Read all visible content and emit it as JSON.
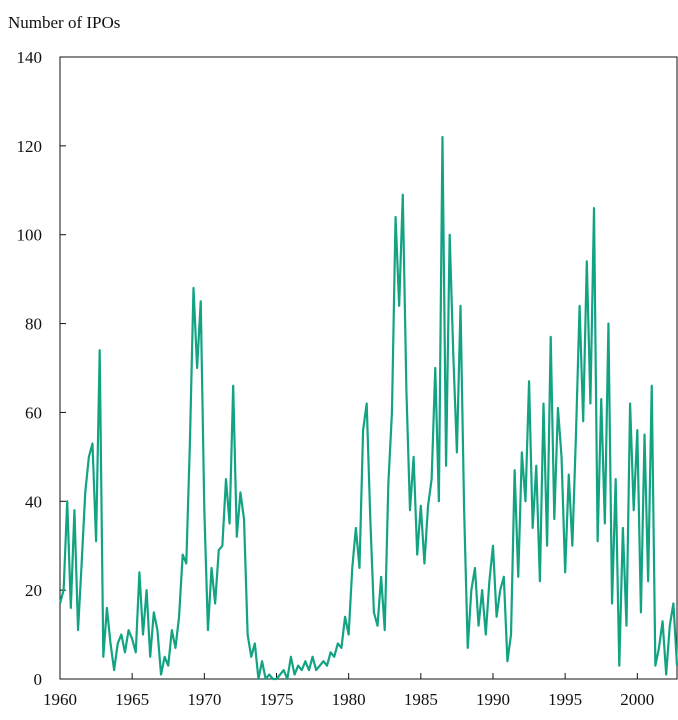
{
  "chart_data": {
    "type": "line",
    "y_axis_label": "Number of IPOs",
    "x": [
      1960,
      1960.25,
      1960.5,
      1960.75,
      1961,
      1961.25,
      1961.5,
      1961.75,
      1962,
      1962.25,
      1962.5,
      1962.75,
      1963,
      1963.25,
      1963.5,
      1963.75,
      1964,
      1964.25,
      1964.5,
      1964.75,
      1965,
      1965.25,
      1965.5,
      1965.75,
      1966,
      1966.25,
      1966.5,
      1966.75,
      1967,
      1967.25,
      1967.5,
      1967.75,
      1968,
      1968.25,
      1968.5,
      1968.75,
      1969,
      1969.25,
      1969.5,
      1969.75,
      1970,
      1970.25,
      1970.5,
      1970.75,
      1971,
      1971.25,
      1971.5,
      1971.75,
      1972,
      1972.25,
      1972.5,
      1972.75,
      1973,
      1973.25,
      1973.5,
      1973.75,
      1974,
      1974.25,
      1974.5,
      1974.75,
      1975,
      1975.25,
      1975.5,
      1975.75,
      1976,
      1976.25,
      1976.5,
      1976.75,
      1977,
      1977.25,
      1977.5,
      1977.75,
      1978,
      1978.25,
      1978.5,
      1978.75,
      1979,
      1979.25,
      1979.5,
      1979.75,
      1980,
      1980.25,
      1980.5,
      1980.75,
      1981,
      1981.25,
      1981.5,
      1981.75,
      1982,
      1982.25,
      1982.5,
      1982.75,
      1983,
      1983.25,
      1983.5,
      1983.75,
      1984,
      1984.25,
      1984.5,
      1984.75,
      1985,
      1985.25,
      1985.5,
      1985.75,
      1986,
      1986.25,
      1986.5,
      1986.75,
      1987,
      1987.25,
      1987.5,
      1987.75,
      1988,
      1988.25,
      1988.5,
      1988.75,
      1989,
      1989.25,
      1989.5,
      1989.75,
      1990,
      1990.25,
      1990.5,
      1990.75,
      1991,
      1991.25,
      1991.5,
      1991.75,
      1992,
      1992.25,
      1992.5,
      1992.75,
      1993,
      1993.25,
      1993.5,
      1993.75,
      1994,
      1994.25,
      1994.5,
      1994.75,
      1995,
      1995.25,
      1995.5,
      1995.75,
      1996,
      1996.25,
      1996.5,
      1996.75,
      1997,
      1997.25,
      1997.5,
      1997.75,
      1998,
      1998.25,
      1998.5,
      1998.75,
      1999,
      1999.25,
      1999.5,
      1999.75,
      2000,
      2000.25,
      2000.5,
      2000.75,
      2001,
      2001.25,
      2001.5,
      2001.75,
      2002,
      2002.25,
      2002.5,
      2002.75
    ],
    "series": [
      {
        "name": "IPOs",
        "color": "#13a383",
        "values": [
          17,
          20,
          40,
          16,
          38,
          11,
          26,
          42,
          50,
          53,
          31,
          74,
          5,
          16,
          8,
          2,
          8,
          10,
          6,
          11,
          9,
          6,
          24,
          10,
          20,
          5,
          15,
          11,
          1,
          5,
          3,
          11,
          7,
          14,
          28,
          26,
          53,
          88,
          70,
          85,
          38,
          11,
          25,
          17,
          29,
          30,
          45,
          35,
          66,
          32,
          42,
          36,
          10,
          5,
          8,
          0,
          4,
          0,
          1,
          0,
          0,
          1,
          2,
          0,
          5,
          1,
          3,
          2,
          4,
          2,
          5,
          2,
          3,
          4,
          3,
          6,
          5,
          8,
          7,
          14,
          10,
          25,
          34,
          25,
          56,
          62,
          36,
          15,
          12,
          23,
          11,
          44,
          60,
          104,
          84,
          109,
          65,
          38,
          50,
          28,
          39,
          26,
          39,
          45,
          70,
          40,
          122,
          48,
          100,
          73,
          51,
          84,
          38,
          7,
          20,
          25,
          12,
          20,
          10,
          22,
          30,
          14,
          20,
          23,
          4,
          10,
          47,
          23,
          51,
          40,
          67,
          34,
          48,
          22,
          62,
          30,
          77,
          36,
          61,
          50,
          24,
          46,
          30,
          55,
          84,
          58,
          94,
          62,
          106,
          31,
          63,
          35,
          80,
          17,
          45,
          3,
          34,
          12,
          62,
          38,
          56,
          15,
          55,
          22,
          66,
          3,
          7,
          13,
          1,
          12,
          17,
          3
        ]
      }
    ],
    "xlim": [
      1960,
      2002.75
    ],
    "ylim": [
      0,
      140
    ],
    "xticks": [
      1960,
      1965,
      1970,
      1975,
      1980,
      1985,
      1990,
      1995,
      2000
    ],
    "yticks": [
      0,
      20,
      40,
      60,
      80,
      100,
      120,
      140
    ]
  }
}
